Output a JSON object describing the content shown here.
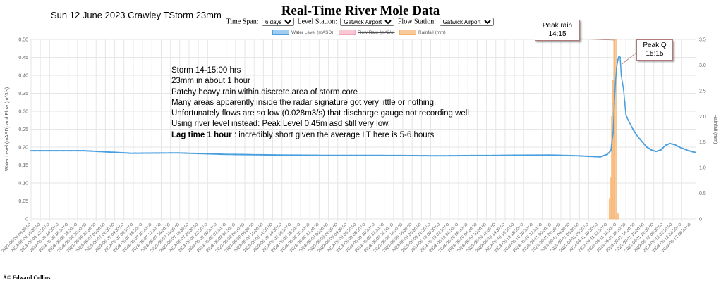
{
  "header": {
    "date_label": "Sun 12 June 2023 Crawley TStorm 23mm",
    "title": "Real-Time River Mole Data"
  },
  "controls": {
    "time_span_label": "Time Span:",
    "time_span_value": "6 days",
    "level_station_label": "Level Station:",
    "level_station_value": "Gatwick Airport",
    "flow_station_label": "Flow Station:",
    "flow_station_value": "Gatwick Airport"
  },
  "annotations": {
    "storm_notes": [
      "Storm 14-15:00 hrs",
      "23mm in about 1 hour",
      "Patchy heavy rain within discrete area of storm core",
      "Many areas apparently inside the radar signature got very little or nothing.",
      "Unfortunately flows are so low (0.028m3/s) that discharge gauge not recording well",
      "Using river level instead: Peak Level 0.45m asd still very low."
    ],
    "lag_bold": "Lag time 1 hour",
    "lag_rest": " : incredibly short given the average LT here is 5-6 hours",
    "peak_rain": [
      "Peak rain",
      "14:15"
    ],
    "peak_q": [
      "Peak Q",
      "15:15"
    ]
  },
  "footer": {
    "copyright": "Â© Edward Collins"
  },
  "colors": {
    "water_level": "#4a9fdf",
    "water_level_fill": "#a0cdf0",
    "flow_rate": "#f2a3b5",
    "rainfall": "#f6b26b",
    "rainfall_fill": "#f9cb9c",
    "grid": "#e6e6e6"
  },
  "chart_data": {
    "type": "line",
    "legend": [
      "Water Level (mASD)",
      "Flow Rate (m^3/s)",
      "Rainfall (mm)"
    ],
    "legend_placement": "top",
    "flow_rate_hidden": true,
    "ylabel_left": "Water Level (mASD) and Flow (m^3/s)",
    "ylabel_right": "Rainfall (mm)",
    "y_left_range": [
      0,
      0.5
    ],
    "y_left_ticks": [
      "0",
      "0.05",
      "0.10",
      "0.15",
      "0.20",
      "0.25",
      "0.30",
      "0.35",
      "0.40",
      "0.45",
      "0.50"
    ],
    "y_right_range": [
      0,
      3.5
    ],
    "y_right_ticks": [
      "0",
      "0.5",
      "1.0",
      "1.5",
      "2.0",
      "2.5",
      "3.0",
      "3.5"
    ],
    "grid": true,
    "x_start": "2023-06-06 08:30",
    "x_end": "2023-06-12 07:30",
    "x_tick_labels": [
      "2023-06-06 08:30:00",
      "2023-06-06 10:30:00",
      "2023-06-06 12:30:00",
      "2023-06-06 14:30:00",
      "2023-06-06 16:30:00",
      "2023-06-06 18:30:00",
      "2023-06-06 20:30:00",
      "2023-06-06 22:30:00",
      "2023-06-07 00:30:00",
      "2023-06-07 02:30:00",
      "2023-06-07 04:30:00",
      "2023-06-07 06:30:00",
      "2023-06-07 08:30:00",
      "2023-06-07 10:30:00",
      "2023-06-07 12:30:00",
      "2023-06-07 14:30:00",
      "2023-06-07 16:30:00",
      "2023-06-07 18:30:00",
      "2023-06-07 20:30:00",
      "2023-06-07 22:30:00",
      "2023-06-08 00:30:00",
      "2023-06-08 02:30:00",
      "2023-06-08 04:30:00",
      "2023-06-08 06:30:00",
      "2023-06-08 08:30:00",
      "2023-06-08 10:30:00",
      "2023-06-08 12:30:00",
      "2023-06-08 14:30:00",
      "2023-06-08 16:30:00",
      "2023-06-08 18:30:00",
      "2023-06-08 20:30:00",
      "2023-06-08 22:30:00",
      "2023-06-09 00:30:00",
      "2023-06-09 02:30:00",
      "2023-06-09 04:30:00",
      "2023-06-09 06:30:00",
      "2023-06-09 08:30:00",
      "2023-06-09 10:30:00",
      "2023-06-09 12:30:00",
      "2023-06-09 14:30:00",
      "2023-06-09 16:30:00",
      "2023-06-09 18:30:00",
      "2023-06-09 20:30:00",
      "2023-06-09 22:30:00",
      "2023-06-10 00:30:00",
      "2023-06-10 02:30:00",
      "2023-06-10 04:30:00",
      "2023-06-10 06:30:00",
      "2023-06-10 08:30:00",
      "2023-06-10 10:30:00",
      "2023-06-10 12:30:00",
      "2023-06-10 14:30:00",
      "2023-06-10 16:30:00",
      "2023-06-10 18:30:00",
      "2023-06-10 20:30:00",
      "2023-06-10 22:30:00",
      "2023-06-11 00:30:00",
      "2023-06-11 02:30:00",
      "2023-06-11 04:30:00",
      "2023-06-11 06:30:00",
      "2023-06-11 08:30:00",
      "2023-06-11 10:30:00",
      "2023-06-11 12:30:00",
      "2023-06-11 14:30:00",
      "2023-06-11 16:30:00",
      "2023-06-11 18:30:00",
      "2023-06-11 20:30:00",
      "2023-06-11 22:30:00",
      "2023-06-12 00:30:00",
      "2023-06-12 02:30:00",
      "2023-06-12 04:30:00",
      "2023-06-12 06:30:00"
    ],
    "water_level_series": {
      "name": "Water Level (mASD)",
      "x": [
        "2023-06-06 08:30",
        "2023-06-06 20:00",
        "2023-06-07 06:00",
        "2023-06-07 16:00",
        "2023-06-08 02:00",
        "2023-06-08 14:00",
        "2023-06-09 00:00",
        "2023-06-09 12:00",
        "2023-06-10 00:00",
        "2023-06-10 12:00",
        "2023-06-11 00:00",
        "2023-06-11 06:00",
        "2023-06-11 11:00",
        "2023-06-11 12:30",
        "2023-06-11 13:15",
        "2023-06-11 13:45",
        "2023-06-11 14:00",
        "2023-06-11 14:15",
        "2023-06-11 14:30",
        "2023-06-11 14:45",
        "2023-06-11 15:00",
        "2023-06-11 15:15",
        "2023-06-11 15:30",
        "2023-06-11 16:00",
        "2023-06-11 16:30",
        "2023-06-11 17:00",
        "2023-06-11 18:00",
        "2023-06-11 19:00",
        "2023-06-11 20:00",
        "2023-06-11 21:00",
        "2023-06-11 22:00",
        "2023-06-11 23:00",
        "2023-06-12 00:00",
        "2023-06-12 01:00",
        "2023-06-12 02:00",
        "2023-06-12 03:00",
        "2023-06-12 04:00",
        "2023-06-12 05:00",
        "2023-06-12 06:00",
        "2023-06-12 07:30"
      ],
      "y": [
        0.19,
        0.19,
        0.183,
        0.184,
        0.18,
        0.178,
        0.177,
        0.177,
        0.176,
        0.177,
        0.178,
        0.176,
        0.173,
        0.18,
        0.19,
        0.24,
        0.32,
        0.38,
        0.42,
        0.443,
        0.453,
        0.45,
        0.4,
        0.36,
        0.29,
        0.275,
        0.25,
        0.23,
        0.215,
        0.2,
        0.192,
        0.188,
        0.192,
        0.205,
        0.21,
        0.207,
        0.2,
        0.195,
        0.19,
        0.185
      ]
    },
    "rainfall_series": {
      "name": "Rainfall (mm)",
      "x": [
        "2023-06-11 13:00",
        "2023-06-11 13:15",
        "2023-06-11 13:30",
        "2023-06-11 13:45",
        "2023-06-11 14:00",
        "2023-06-11 14:15",
        "2023-06-11 14:30",
        "2023-06-11 14:45"
      ],
      "y": [
        0.4,
        0.8,
        2.0,
        2.7,
        3.5,
        3.5,
        0.1,
        0.1
      ]
    },
    "flow_series": {
      "name": "Flow Rate (m^3/s)",
      "x": [],
      "y": []
    }
  }
}
